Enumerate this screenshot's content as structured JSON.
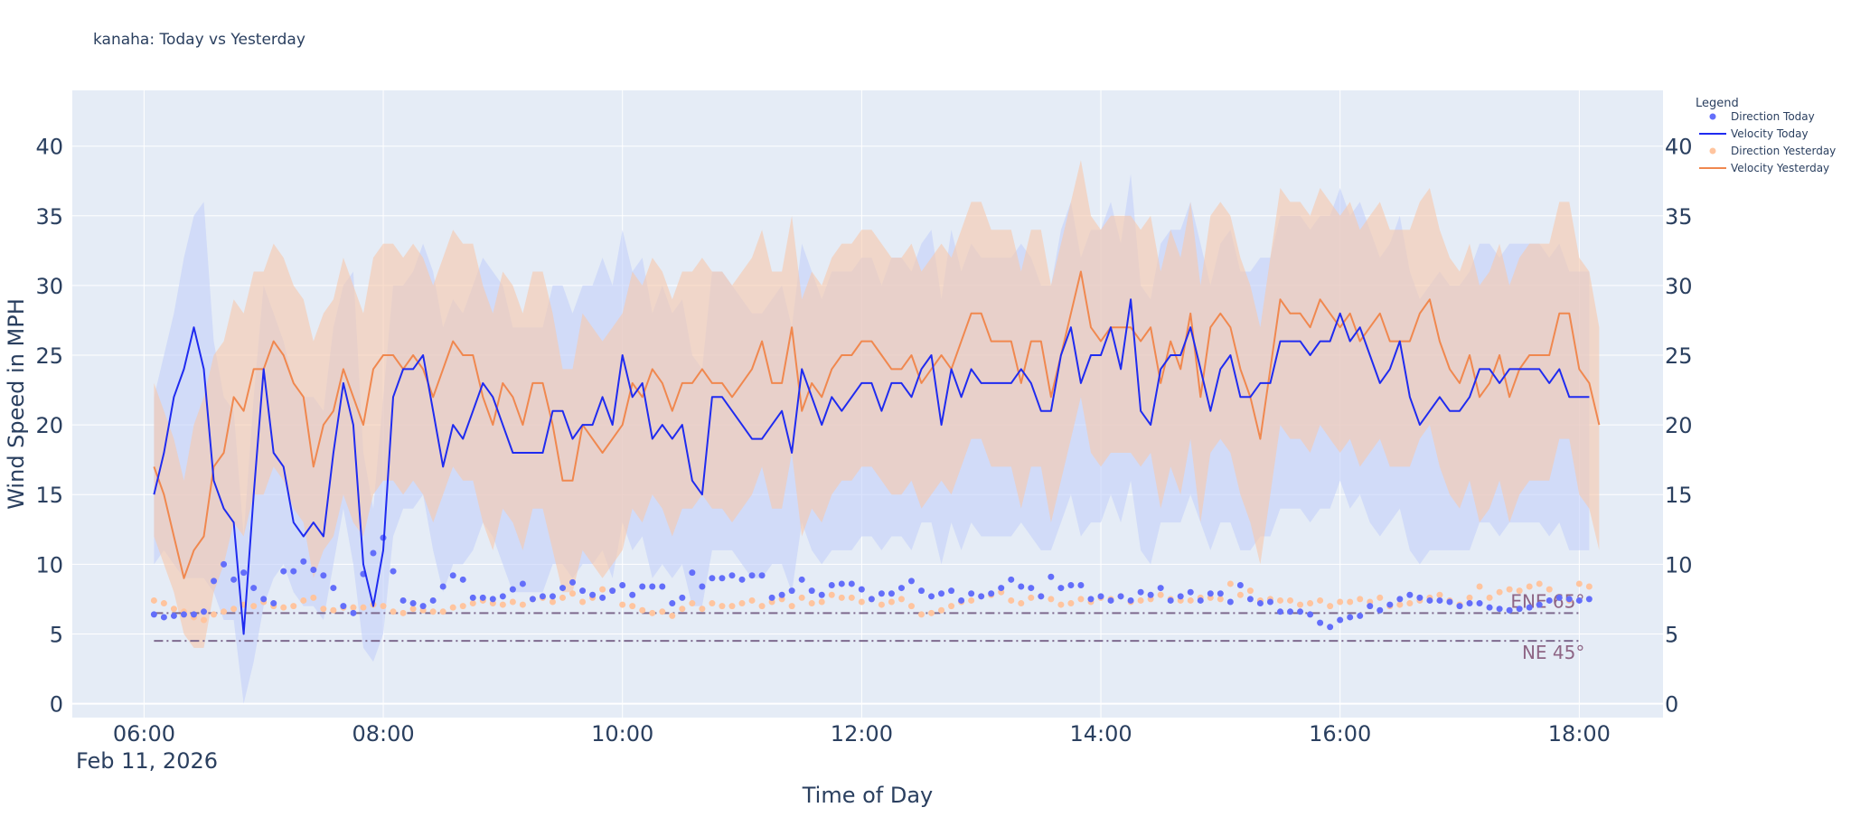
{
  "chart_data": {
    "type": "line",
    "title": "kanaha: Today vs Yesterday",
    "xlabel": "Time of Day",
    "ylabel": "Wind Speed in MPH",
    "date_label": "Feb 11, 2026",
    "xlim_hours": [
      5.4,
      18.7
    ],
    "ylim": [
      -1,
      44
    ],
    "y_ticks": [
      0,
      5,
      10,
      15,
      20,
      25,
      30,
      35,
      40
    ],
    "x_ticks": [
      {
        "hour": 6,
        "label": "06:00"
      },
      {
        "hour": 8,
        "label": "08:00"
      },
      {
        "hour": 10,
        "label": "10:00"
      },
      {
        "hour": 12,
        "label": "12:00"
      },
      {
        "hour": 14,
        "label": "14:00"
      },
      {
        "hour": 16,
        "label": "16:00"
      },
      {
        "hour": 18,
        "label": "18:00"
      }
    ],
    "grid": true,
    "legend": {
      "title": "Legend",
      "position": "right",
      "entries": [
        {
          "name": "Direction Today",
          "kind": "marker",
          "color": "#636EFA"
        },
        {
          "name": "Velocity Today",
          "kind": "line",
          "color": "#1F2BF0"
        },
        {
          "name": "Direction Yesterday",
          "kind": "marker",
          "color": "#FFC49E"
        },
        {
          "name": "Velocity Yesterday",
          "kind": "line",
          "color": "#F0884F"
        }
      ]
    },
    "colors": {
      "plot_bg": "#E5ECF6",
      "grid": "#FFFFFF",
      "text": "#2A3F5F",
      "today_line": "#1F2BF0",
      "today_band": "#C3D0FA",
      "today_dir": "#636EFA",
      "yest_line": "#F0884F",
      "yest_band": "#F6C8AC",
      "yest_dir": "#FFC49E",
      "ref_line": "#7E6A8E",
      "ref_text": "#8E6585"
    },
    "reference_lines": [
      {
        "label": "ENE 65°",
        "value": 6.5
      },
      {
        "label": "NE 45°",
        "value": 4.5
      }
    ],
    "start_hour": 6.083,
    "step_minutes": 5,
    "series": [
      {
        "name": "Velocity Today",
        "values": [
          15,
          18,
          22,
          24,
          27,
          24,
          16,
          14,
          13,
          5,
          15,
          24,
          18,
          17,
          13,
          12,
          13,
          12,
          18,
          23,
          20,
          10,
          7,
          11,
          22,
          24,
          24,
          25,
          21,
          17,
          20,
          19,
          21,
          23,
          22,
          20,
          18,
          18,
          18,
          18,
          21,
          21,
          19,
          20,
          20,
          22,
          20,
          25,
          22,
          23,
          19,
          20,
          19,
          20,
          16,
          15,
          22,
          22,
          21,
          20,
          19,
          19,
          20,
          21,
          18,
          24,
          22,
          20,
          22,
          21,
          22,
          23,
          23,
          21,
          23,
          23,
          22,
          24,
          25,
          20,
          24,
          22,
          24,
          23,
          23,
          23,
          23,
          24,
          23,
          21,
          21,
          25,
          27,
          23,
          25,
          25,
          27,
          24,
          29,
          21,
          20,
          24,
          25,
          25,
          27,
          24,
          21,
          24,
          25,
          22,
          22,
          23,
          23,
          26,
          26,
          26,
          25,
          26,
          26,
          28,
          26,
          27,
          25,
          23,
          24,
          26,
          22,
          20,
          21,
          22,
          21,
          21,
          22,
          24,
          24,
          23,
          24,
          24,
          24,
          24,
          23,
          24,
          22,
          22,
          22
        ]
      },
      {
        "name": "Velocity Yesterday",
        "values": [
          17,
          15,
          12,
          9,
          11,
          12,
          17,
          18,
          22,
          21,
          24,
          24,
          26,
          25,
          23,
          22,
          17,
          20,
          21,
          24,
          22,
          20,
          24,
          25,
          25,
          24,
          25,
          24,
          22,
          24,
          26,
          25,
          25,
          22,
          20,
          23,
          22,
          20,
          23,
          23,
          20,
          16,
          16,
          20,
          19,
          18,
          19,
          20,
          23,
          22,
          24,
          23,
          21,
          23,
          23,
          24,
          23,
          23,
          22,
          23,
          24,
          26,
          23,
          23,
          27,
          21,
          23,
          22,
          24,
          25,
          25,
          26,
          26,
          25,
          24,
          24,
          25,
          23,
          24,
          25,
          24,
          26,
          28,
          28,
          26,
          26,
          26,
          23,
          26,
          26,
          22,
          25,
          28,
          31,
          27,
          26,
          27,
          27,
          27,
          26,
          27,
          23,
          26,
          24,
          28,
          22,
          27,
          28,
          27,
          24,
          22,
          19,
          24,
          29,
          28,
          28,
          27,
          29,
          28,
          27,
          28,
          26,
          27,
          28,
          26,
          26,
          26,
          28,
          29,
          26,
          24,
          23,
          25,
          22,
          23,
          25,
          22,
          24,
          25,
          25,
          25,
          28,
          28,
          24,
          23,
          20
        ]
      },
      {
        "name": "Gust Band Today",
        "low": [
          10,
          11,
          10,
          9,
          9,
          9,
          8,
          6,
          6,
          0,
          3,
          7,
          9,
          10,
          8,
          7,
          7,
          6,
          10,
          14,
          10,
          4,
          3,
          5,
          12,
          14,
          14,
          15,
          11,
          8,
          10,
          10,
          11,
          13,
          12,
          10,
          8,
          8,
          8,
          8,
          10,
          10,
          9,
          10,
          10,
          11,
          9,
          13,
          11,
          12,
          9,
          10,
          9,
          10,
          7,
          7,
          11,
          11,
          11,
          10,
          9,
          9,
          10,
          10,
          8,
          13,
          11,
          10,
          11,
          11,
          11,
          12,
          12,
          11,
          12,
          12,
          11,
          13,
          13,
          10,
          13,
          11,
          13,
          12,
          12,
          12,
          12,
          13,
          12,
          11,
          11,
          13,
          15,
          12,
          13,
          13,
          15,
          13,
          16,
          11,
          10,
          13,
          13,
          13,
          15,
          13,
          11,
          13,
          13,
          11,
          11,
          12,
          12,
          14,
          14,
          14,
          13,
          14,
          14,
          16,
          14,
          15,
          13,
          12,
          13,
          14,
          11,
          10,
          11,
          11,
          11,
          11,
          11,
          13,
          13,
          12,
          13,
          13,
          13,
          13,
          12,
          13,
          11,
          11,
          11
        ],
        "high": [
          22,
          25,
          28,
          32,
          35,
          36,
          26,
          22,
          21,
          12,
          22,
          30,
          28,
          26,
          23,
          22,
          22,
          21,
          27,
          30,
          31,
          18,
          14,
          22,
          30,
          30,
          31,
          33,
          31,
          27,
          29,
          28,
          30,
          32,
          31,
          30,
          27,
          27,
          27,
          27,
          30,
          30,
          28,
          30,
          30,
          32,
          30,
          34,
          31,
          32,
          28,
          30,
          28,
          29,
          25,
          24,
          31,
          31,
          30,
          29,
          28,
          28,
          29,
          30,
          27,
          33,
          31,
          29,
          31,
          31,
          31,
          32,
          32,
          30,
          32,
          32,
          31,
          33,
          34,
          29,
          34,
          31,
          33,
          32,
          32,
          32,
          32,
          33,
          32,
          30,
          30,
          34,
          36,
          32,
          34,
          34,
          36,
          33,
          38,
          30,
          29,
          33,
          34,
          34,
          36,
          33,
          30,
          33,
          34,
          31,
          31,
          32,
          32,
          35,
          35,
          35,
          34,
          35,
          35,
          37,
          35,
          36,
          34,
          32,
          33,
          35,
          31,
          29,
          30,
          31,
          30,
          30,
          31,
          33,
          33,
          32,
          33,
          33,
          33,
          33,
          32,
          33,
          31,
          31,
          31
        ]
      },
      {
        "name": "Gust Band Yesterday",
        "low": [
          12,
          10,
          8,
          5,
          4,
          4,
          8,
          10,
          13,
          12,
          15,
          15,
          17,
          16,
          14,
          13,
          9,
          11,
          12,
          15,
          13,
          12,
          15,
          16,
          16,
          15,
          16,
          15,
          13,
          15,
          17,
          16,
          16,
          13,
          11,
          14,
          13,
          11,
          14,
          14,
          11,
          8,
          8,
          11,
          10,
          9,
          10,
          11,
          14,
          13,
          15,
          14,
          12,
          14,
          14,
          15,
          14,
          14,
          13,
          14,
          15,
          17,
          14,
          14,
          18,
          12,
          14,
          13,
          15,
          16,
          16,
          17,
          17,
          16,
          15,
          15,
          16,
          14,
          15,
          16,
          15,
          17,
          19,
          19,
          17,
          17,
          17,
          14,
          17,
          17,
          13,
          16,
          19,
          22,
          18,
          17,
          18,
          18,
          18,
          17,
          18,
          14,
          17,
          15,
          19,
          13,
          18,
          19,
          18,
          15,
          13,
          10,
          15,
          20,
          19,
          19,
          18,
          20,
          19,
          18,
          19,
          17,
          18,
          19,
          17,
          17,
          17,
          19,
          20,
          17,
          15,
          14,
          16,
          13,
          14,
          16,
          13,
          15,
          16,
          16,
          16,
          19,
          19,
          15,
          14,
          11
        ],
        "high": [
          23,
          21,
          19,
          16,
          20,
          22,
          25,
          26,
          29,
          28,
          31,
          31,
          33,
          32,
          30,
          29,
          26,
          28,
          29,
          32,
          30,
          28,
          32,
          33,
          33,
          32,
          33,
          32,
          30,
          32,
          34,
          33,
          33,
          30,
          28,
          31,
          30,
          28,
          31,
          31,
          28,
          24,
          24,
          28,
          27,
          26,
          27,
          28,
          31,
          30,
          32,
          31,
          29,
          31,
          31,
          32,
          31,
          31,
          30,
          31,
          32,
          34,
          31,
          31,
          35,
          29,
          31,
          30,
          32,
          33,
          33,
          34,
          34,
          33,
          32,
          32,
          33,
          31,
          32,
          33,
          32,
          34,
          36,
          36,
          34,
          34,
          34,
          31,
          34,
          34,
          30,
          33,
          36,
          39,
          35,
          34,
          35,
          35,
          35,
          34,
          35,
          31,
          34,
          32,
          36,
          30,
          35,
          36,
          35,
          32,
          30,
          27,
          32,
          37,
          36,
          36,
          35,
          37,
          36,
          35,
          36,
          34,
          35,
          36,
          34,
          34,
          34,
          36,
          37,
          34,
          32,
          31,
          33,
          30,
          31,
          33,
          30,
          32,
          33,
          33,
          33,
          36,
          36,
          32,
          31,
          27
        ]
      },
      {
        "name": "Direction Today",
        "values": [
          6.4,
          6.2,
          6.3,
          6.4,
          6.4,
          6.6,
          8.8,
          10,
          8.9,
          9.4,
          8.3,
          7.5,
          7.2,
          9.5,
          9.5,
          10.2,
          9.6,
          9.2,
          8.3,
          7,
          6.5,
          9.3,
          10.8,
          11.9,
          9.5,
          7.4,
          7.2,
          7,
          7.4,
          8.4,
          9.2,
          8.9,
          7.6,
          7.6,
          7.5,
          7.7,
          8.2,
          8.6,
          7.5,
          7.7,
          7.7,
          8.3,
          8.7,
          8.1,
          7.8,
          7.6,
          8.1,
          8.5,
          7.8,
          8.4,
          8.4,
          8.4,
          7.2,
          7.6,
          9.4,
          8.4,
          9,
          9,
          9.2,
          8.9,
          9.2,
          9.2,
          7.6,
          7.8,
          8.1,
          8.9,
          8.1,
          7.8,
          8.5,
          8.6,
          8.6,
          8.2,
          7.5,
          7.9,
          7.9,
          8.3,
          8.8,
          8.1,
          7.7,
          7.9,
          8.1,
          7.4,
          7.9,
          7.7,
          7.9,
          8.3,
          8.9,
          8.4,
          8.3,
          7.7,
          9.1,
          8.3,
          8.5,
          8.5,
          7.5,
          7.7,
          7.4,
          7.7,
          7.4,
          8,
          7.8,
          8.3,
          7.4,
          7.7,
          8,
          7.4,
          7.9,
          7.9,
          7.3,
          8.5,
          7.5,
          7.2,
          7.3,
          6.6,
          6.6,
          6.6,
          6.4,
          5.8,
          5.5,
          6,
          6.2,
          6.3,
          7,
          6.7,
          7.1,
          7.5,
          7.8,
          7.6,
          7.4,
          7.4,
          7.3,
          7.0,
          7.2,
          7.2,
          6.9,
          6.8,
          6.7,
          6.8,
          6.9,
          7.1,
          7.4,
          7.6,
          7.5,
          7.4,
          7.5
        ]
      },
      {
        "name": "Direction Yesterday",
        "values": [
          7.4,
          7.2,
          6.8,
          6.6,
          6.2,
          6.0,
          6.4,
          6.6,
          6.8,
          7.1,
          7.0,
          7.3,
          7.0,
          6.9,
          7.0,
          7.4,
          7.6,
          6.8,
          6.7,
          6.9,
          6.9,
          6.9,
          7.1,
          7.0,
          6.6,
          6.5,
          6.8,
          6.7,
          6.6,
          6.6,
          6.9,
          7.0,
          7.2,
          7.4,
          7.2,
          7.1,
          7.3,
          7.1,
          7.5,
          7.6,
          7.3,
          7.6,
          7.9,
          7.3,
          7.6,
          8.2,
          8.1,
          7.1,
          7.0,
          6.7,
          6.5,
          6.6,
          6.3,
          6.8,
          7.2,
          6.8,
          7.2,
          7.0,
          7.0,
          7.2,
          7.4,
          7.0,
          7.3,
          7.5,
          7.0,
          7.6,
          7.2,
          7.3,
          7.8,
          7.6,
          7.6,
          7.3,
          7.5,
          7.1,
          7.3,
          7.5,
          7.0,
          6.4,
          6.5,
          6.7,
          7.0,
          7.3,
          7.4,
          7.7,
          7.8,
          8.0,
          7.4,
          7.2,
          7.6,
          7.7,
          7.5,
          7.1,
          7.2,
          7.5,
          7.3,
          7.6,
          7.5,
          7.7,
          7.3,
          7.4,
          7.5,
          7.8,
          7.5,
          7.4,
          7.4,
          7.6,
          7.6,
          7.5,
          8.6,
          7.8,
          8.1,
          7.4,
          7.5,
          7.4,
          7.4,
          7.1,
          7.2,
          7.4,
          7.0,
          7.3,
          7.3,
          7.5,
          7.3,
          7.6,
          7.0,
          7.1,
          7.2,
          7.4,
          7.6,
          7.8,
          7.4,
          7.1,
          7.6,
          8.4,
          7.6,
          8.0,
          8.2,
          8.1,
          8.4,
          8.6,
          8.2,
          7.6,
          7.4,
          8.6,
          8.4
        ]
      }
    ]
  }
}
